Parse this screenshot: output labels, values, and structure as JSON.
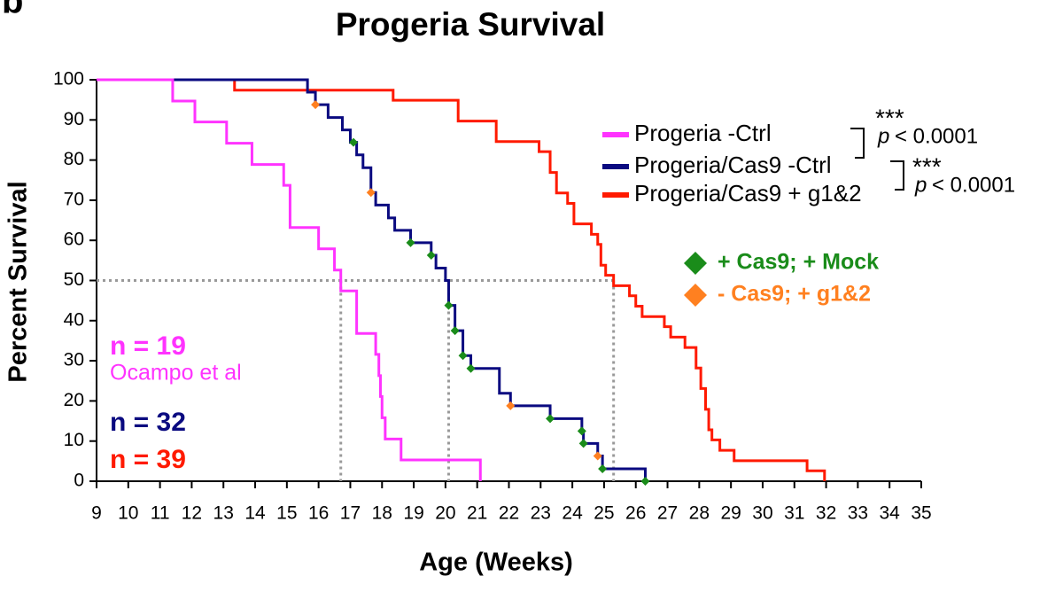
{
  "chart_data": {
    "type": "step",
    "panel_label": "b",
    "title": "Progeria Survival",
    "x_label": "Age (Weeks)",
    "y_label": "Percent Survival",
    "xlim": [
      9,
      35
    ],
    "xticks": [
      9,
      10,
      11,
      12,
      13,
      14,
      15,
      16,
      17,
      18,
      19,
      20,
      21,
      22,
      23,
      24,
      25,
      26,
      27,
      28,
      29,
      30,
      31,
      32,
      33,
      34,
      35
    ],
    "ylim": [
      0,
      100
    ],
    "yticks": [
      0,
      10,
      20,
      30,
      40,
      50,
      60,
      70,
      80,
      90,
      100
    ],
    "series": [
      {
        "name": "Progeria -Ctrl",
        "color": "#ff33ff",
        "x": [
          9,
          11.4,
          12.1,
          13.1,
          13.9,
          14.9,
          15.1,
          16.0,
          16.5,
          16.7,
          17.2,
          17.8,
          17.9,
          17.95,
          18.0,
          18.1,
          18.6,
          21.1
        ],
        "values": [
          100,
          94.7,
          89.5,
          84.2,
          78.9,
          73.7,
          63.2,
          57.9,
          52.6,
          47.4,
          36.8,
          31.6,
          26.3,
          21.1,
          15.8,
          10.5,
          5.3,
          0
        ]
      },
      {
        "name": "Progeria/Cas9 -Ctrl",
        "color": "#0a0a80",
        "x": [
          9,
          15.65,
          15.9,
          16.3,
          16.75,
          17.0,
          17.2,
          17.4,
          17.65,
          17.8,
          18.2,
          18.4,
          18.9,
          19.55,
          19.7,
          20.0,
          20.1,
          20.3,
          20.55,
          20.8,
          21.7,
          22.05,
          23.3,
          24.3,
          24.35,
          24.8,
          24.95,
          26.3
        ],
        "values": [
          100,
          96.9,
          93.8,
          90.6,
          87.5,
          84.4,
          81.3,
          78.1,
          71.9,
          68.8,
          65.6,
          62.5,
          59.4,
          56.3,
          53.1,
          50,
          43.8,
          37.5,
          31.3,
          28.1,
          21.9,
          18.8,
          15.6,
          12.5,
          9.4,
          6.3,
          3.1,
          0
        ]
      },
      {
        "name": "Progeria/Cas9 + g1&2",
        "color": "#ff1a00",
        "x": [
          9,
          13.35,
          18.35,
          20.4,
          21.6,
          22.95,
          23.3,
          23.5,
          23.85,
          24.05,
          24.6,
          24.8,
          24.9,
          25.05,
          25.3,
          25.8,
          26.0,
          26.2,
          26.9,
          27.1,
          27.55,
          27.9,
          28.05,
          28.2,
          28.3,
          28.4,
          28.65,
          29.1,
          31.4,
          31.95
        ],
        "values": [
          100,
          97.4,
          94.9,
          89.7,
          84.6,
          82.1,
          76.9,
          71.8,
          69.2,
          64.1,
          61.5,
          59.0,
          53.8,
          51.3,
          48.7,
          46.2,
          43.6,
          41.0,
          38.5,
          35.9,
          33.3,
          28.2,
          23.1,
          17.9,
          12.8,
          10.3,
          7.7,
          5.1,
          2.6,
          0
        ]
      }
    ],
    "markers": [
      {
        "name": "+ Cas9; + Mock",
        "color": "#1a8c1a",
        "x": [
          17.1,
          18.9,
          19.55,
          20.1,
          20.3,
          20.55,
          20.8,
          23.3,
          24.3,
          24.35,
          24.95,
          26.3
        ],
        "values": [
          84.4,
          59.4,
          56.3,
          43.8,
          37.5,
          31.3,
          28.1,
          15.6,
          12.5,
          9.4,
          3.1,
          0
        ]
      },
      {
        "name": "- Cas9; + g1&2",
        "color": "#ff8020",
        "x": [
          15.9,
          17.65,
          22.05,
          24.8
        ],
        "values": [
          93.8,
          71.9,
          18.8,
          6.3
        ]
      }
    ],
    "reference_lines": {
      "y": 50,
      "x": [
        16.7,
        20.1,
        25.3
      ]
    },
    "significance": [
      {
        "stars": "***",
        "p": "p",
        "text": "< 0.0001"
      },
      {
        "stars": "***",
        "p": "p",
        "text": "< 0.0001"
      }
    ],
    "annotations": [
      {
        "text": "n = 19",
        "color": "#ff33ff"
      },
      {
        "text": "Ocampo et al",
        "color": "#ff33ff"
      },
      {
        "text": "n = 32",
        "color": "#0a0a80"
      },
      {
        "text": "n = 39",
        "color": "#ff1a00"
      }
    ]
  }
}
